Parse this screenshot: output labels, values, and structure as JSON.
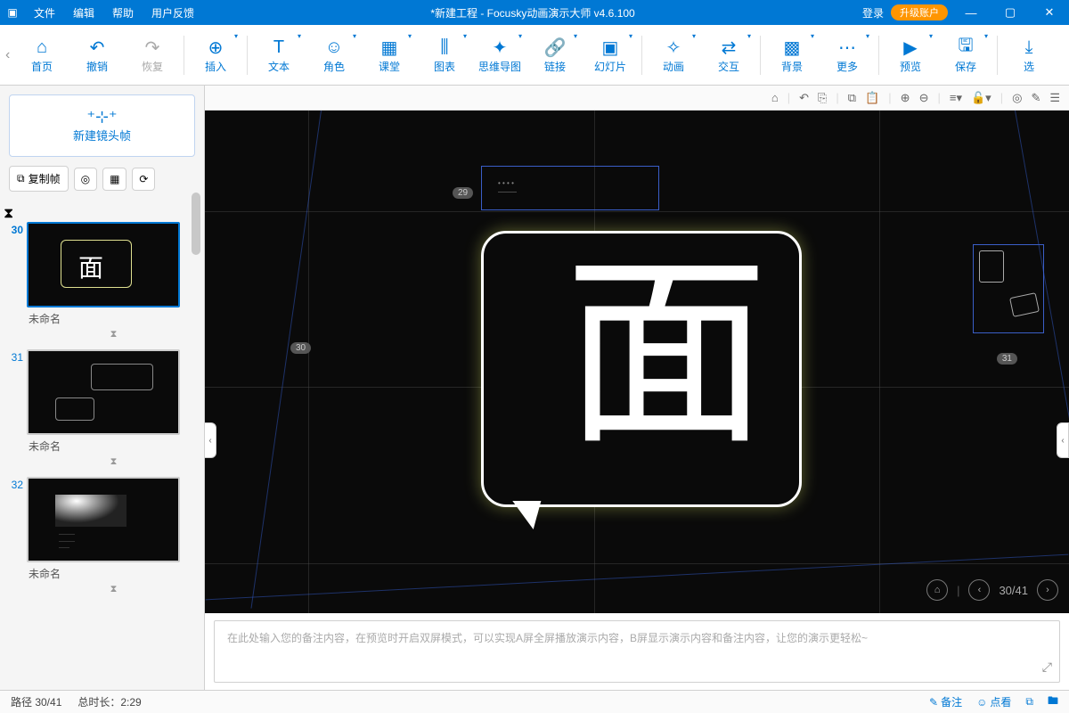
{
  "titlebar": {
    "menus": [
      "文件",
      "编辑",
      "帮助",
      "用户反馈"
    ],
    "title": "*新建工程 - Focusky动画演示大师  v4.6.100",
    "login": "登录",
    "upgrade": "升级账户"
  },
  "toolbar": {
    "items": [
      {
        "icon": "⌂",
        "label": "首页",
        "sep": false
      },
      {
        "icon": "↶",
        "label": "撤销",
        "sep": false
      },
      {
        "icon": "↷",
        "label": "恢复",
        "sep": true,
        "dis": true
      },
      {
        "icon": "⊕",
        "label": "插入",
        "sep": true
      },
      {
        "icon": "T",
        "label": "文本",
        "sep": false
      },
      {
        "icon": "☺",
        "label": "角色",
        "sep": false
      },
      {
        "icon": "▦",
        "label": "课堂",
        "sep": false
      },
      {
        "icon": "⫼",
        "label": "图表",
        "sep": false
      },
      {
        "icon": "✦",
        "label": "思维导图",
        "sep": false
      },
      {
        "icon": "🔗",
        "label": "链接",
        "sep": false
      },
      {
        "icon": "▣",
        "label": "幻灯片",
        "sep": true
      },
      {
        "icon": "✧",
        "label": "动画",
        "sep": false
      },
      {
        "icon": "⇄",
        "label": "交互",
        "sep": true
      },
      {
        "icon": "▩",
        "label": "背景",
        "sep": false
      },
      {
        "icon": "⋯",
        "label": "更多",
        "sep": true
      },
      {
        "icon": "▶",
        "label": "预览",
        "sep": false
      },
      {
        "icon": "🖫",
        "label": "保存",
        "sep": true
      },
      {
        "icon": "⤓",
        "label": "选",
        "sep": false
      }
    ]
  },
  "left": {
    "newframe": "新建镜头帧",
    "copy": "复制帧",
    "slides": [
      {
        "num": "30",
        "cap": "未命名",
        "sel": true,
        "type": "bubble1"
      },
      {
        "num": "31",
        "cap": "未命名",
        "sel": false,
        "type": "bubble2"
      },
      {
        "num": "32",
        "cap": "未命名",
        "sel": false,
        "type": "lamp"
      }
    ]
  },
  "canvas": {
    "glyph": "面",
    "labels": {
      "f29": "29",
      "f30": "30",
      "f31": "31"
    },
    "nav": {
      "pos": "30/41"
    },
    "colors": {
      "bg": "#0a0a0a",
      "accent": "#0078d4",
      "guide": "#3a5ec8"
    }
  },
  "notes": {
    "placeholder": "在此处输入您的备注内容，在预览时开启双屏模式，可以实现A屏全屏播放演示内容，B屏显示演示内容和备注内容，让您的演示更轻松~"
  },
  "status": {
    "path": "路径 30/41",
    "duration": "总时长：2:29",
    "annotate": "备注",
    "review": "点看"
  }
}
